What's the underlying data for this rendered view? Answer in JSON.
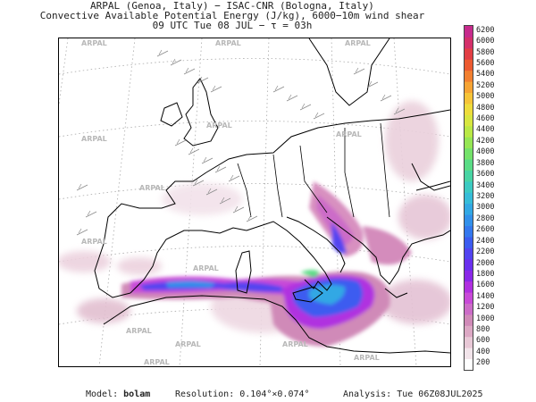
{
  "header": {
    "line1": "ARPAL (Genoa, Italy)  −  ISAC-CNR (Bologna, Italy)",
    "line2": "Convective Available Potential Energy (J/kg), 6000−10m wind shear",
    "line3": "09 UTC Tue 08 JUL  −  τ = 03h"
  },
  "colorbar": {
    "levels": [
      "200",
      "400",
      "600",
      "800",
      "1000",
      "1200",
      "1400",
      "1600",
      "1800",
      "2000",
      "2200",
      "2400",
      "2600",
      "2800",
      "3000",
      "3200",
      "3400",
      "3600",
      "3800",
      "4000",
      "4200",
      "4400",
      "4600",
      "4800",
      "5000",
      "5200",
      "5400",
      "5600",
      "5800",
      "6000",
      "6200"
    ],
    "colors": [
      "#ffffff",
      "#f2e4ea",
      "#e8c8d6",
      "#dca8c4",
      "#d08ab8",
      "#cc6cc8",
      "#c84ad8",
      "#b030e0",
      "#8a28e8",
      "#6a30ee",
      "#5244f0",
      "#3c5cf0",
      "#3478ee",
      "#3290ea",
      "#32a8e4",
      "#36bcd8",
      "#3ccac2",
      "#48d4a4",
      "#5adc86",
      "#74e26a",
      "#96e654",
      "#bae846",
      "#d8e640",
      "#eedc3c",
      "#f6c438",
      "#f6a434",
      "#f28030",
      "#ec5a30",
      "#e23e44",
      "#d4306a",
      "#c62a8c"
    ]
  },
  "map": {
    "watermark": "ARPAL",
    "icons": [
      "coastline",
      "wind-barbs",
      "cape-shading",
      "lat-lon-grid"
    ]
  },
  "footer": {
    "model_label": "Model:",
    "model_value": "bolam",
    "resolution_label": "Resolution:",
    "resolution_value": "0.104°×0.074°",
    "analysis_label": "Analysis:",
    "analysis_value": "Tue 06Z08JUL2025"
  }
}
